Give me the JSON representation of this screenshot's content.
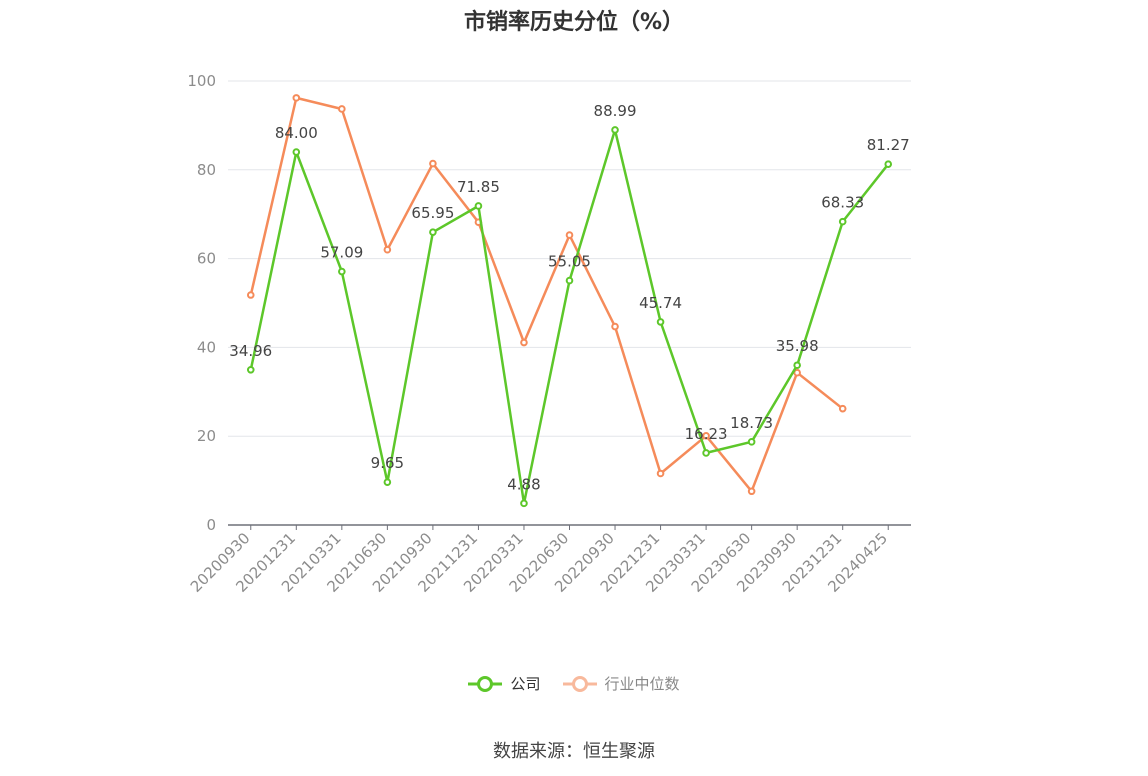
{
  "chart_data": {
    "type": "line",
    "title": "市销率历史分位（%）",
    "categories": [
      "20200930",
      "20201231",
      "20210331",
      "20210630",
      "20210930",
      "20211231",
      "20220331",
      "20220630",
      "20220930",
      "20221231",
      "20230331",
      "20230630",
      "20230930",
      "20231231",
      "20240425"
    ],
    "ylim": [
      0,
      100
    ],
    "yticks": [
      0,
      20,
      40,
      60,
      80,
      100
    ],
    "grid": true,
    "legend": "bottom",
    "series": [
      {
        "name": "公司",
        "color": "#5dc72a",
        "values": [
          34.96,
          84.0,
          57.09,
          9.65,
          65.95,
          71.85,
          4.88,
          55.05,
          88.99,
          45.74,
          16.23,
          18.73,
          35.98,
          68.33,
          81.27
        ],
        "labels": [
          "34.96",
          "84.00",
          "57.09",
          "9.65",
          "65.95",
          "71.85",
          "4.88",
          "55.05",
          "88.99",
          "45.74",
          "16.23",
          "18.73",
          "35.98",
          "68.33",
          "81.27"
        ]
      },
      {
        "name": "行业中位数",
        "color": "#f58b5a",
        "legend_color": "#f8b99c",
        "values": [
          51.8,
          96.2,
          93.7,
          62.0,
          81.4,
          68.2,
          41.1,
          65.3,
          44.7,
          11.6,
          20.1,
          7.6,
          34.3,
          26.2,
          null
        ]
      }
    ]
  },
  "source": "数据来源：恒生聚源"
}
